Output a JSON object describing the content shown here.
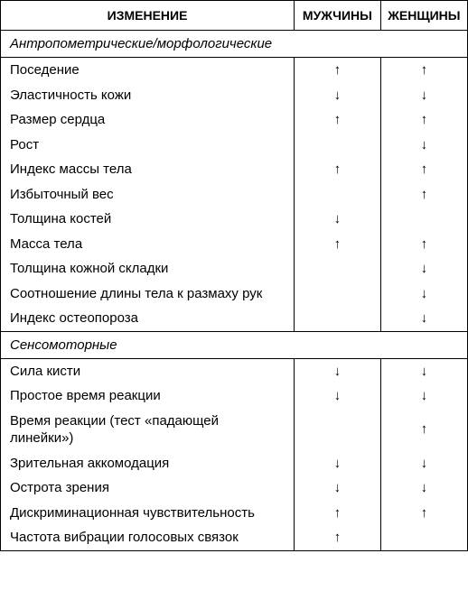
{
  "headers": {
    "change": "ИЗМЕНЕНИЕ",
    "men": "МУЖЧИНЫ",
    "women": "ЖЕНЩИНЫ"
  },
  "arrows": {
    "up": "↑",
    "down": "↓",
    "none": ""
  },
  "sections": [
    {
      "title": "Антропометрические/морфологические",
      "rows": [
        {
          "label": "Поседение",
          "men": "up",
          "women": "up"
        },
        {
          "label": "Эластичность кожи",
          "men": "down",
          "women": "down"
        },
        {
          "label": "Размер сердца",
          "men": "up",
          "women": "up"
        },
        {
          "label": "Рост",
          "men": "none",
          "women": "down"
        },
        {
          "label": "Индекс массы тела",
          "men": "up",
          "women": "up"
        },
        {
          "label": "Избыточный вес",
          "men": "none",
          "women": "up"
        },
        {
          "label": "Толщина костей",
          "men": "down",
          "women": "none"
        },
        {
          "label": "Масса тела",
          "men": "up",
          "women": "up"
        },
        {
          "label": "Толщина кожной складки",
          "men": "none",
          "women": "down"
        },
        {
          "label": "Соотношение длины тела к размаху рук",
          "men": "none",
          "women": "down"
        },
        {
          "label": "Индекс остеопороза",
          "men": "none",
          "women": "down"
        }
      ]
    },
    {
      "title": "Сенсомоторные",
      "rows": [
        {
          "label": "Сила кисти",
          "men": "down",
          "women": "down"
        },
        {
          "label": "Простое время реакции",
          "men": "down",
          "women": "down"
        },
        {
          "label": "Время реакции (тест «падающей линейки»)",
          "men": "none",
          "women": "up"
        },
        {
          "label": "Зрительная аккомодация",
          "men": "down",
          "women": "down"
        },
        {
          "label": "Острота зрения",
          "men": "down",
          "women": "down"
        },
        {
          "label": "Дискриминационная чувствительность",
          "men": "up",
          "women": "up"
        },
        {
          "label": "Частота вибрации голосовых связок",
          "men": "up",
          "women": "none"
        }
      ]
    }
  ]
}
